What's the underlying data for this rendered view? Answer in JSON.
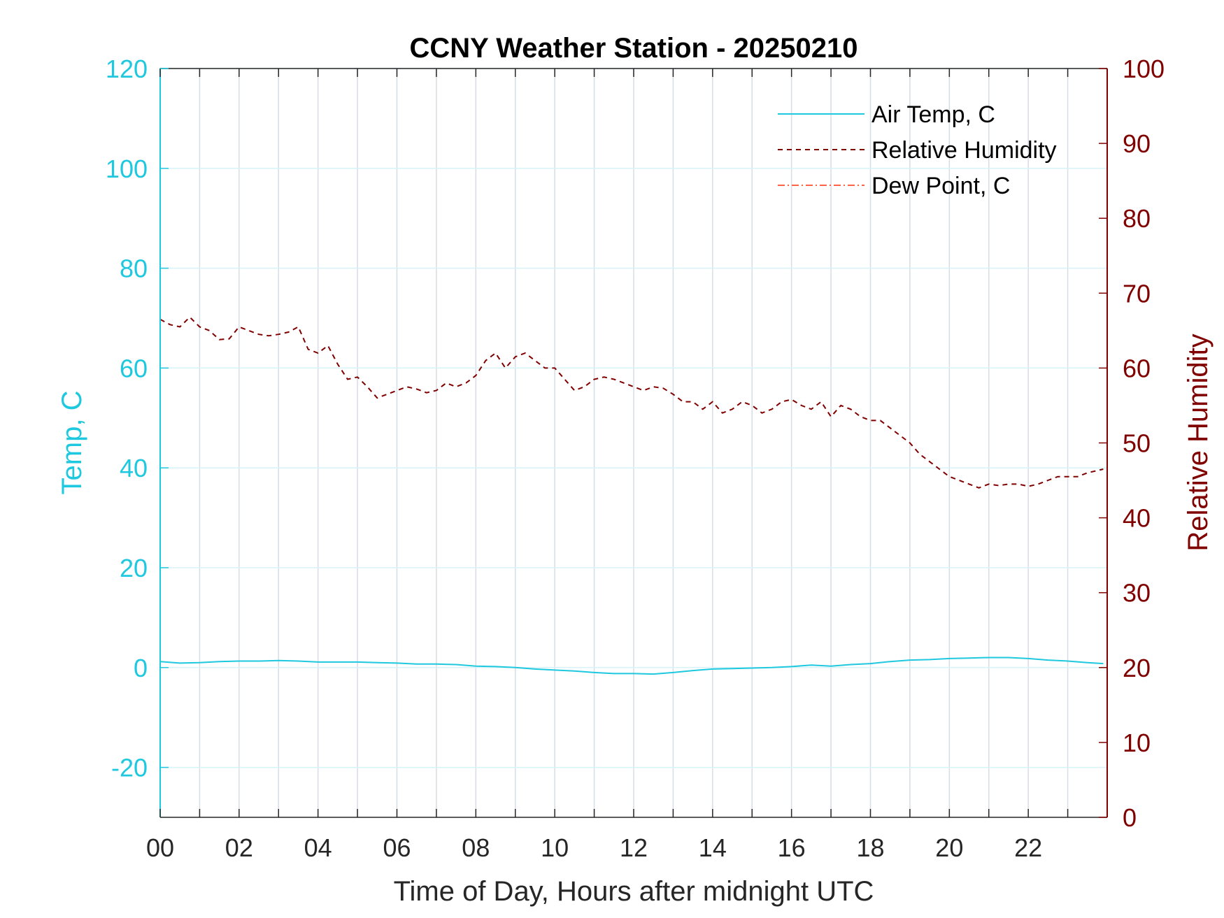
{
  "chart_data": {
    "type": "line",
    "title": "CCNY Weather Station - 20250210",
    "xlabel": "Time of Day, Hours after midnight UTC",
    "ylabel_left": "Temp, C",
    "ylabel_right": "Relative Humidity",
    "xlim": [
      0,
      24
    ],
    "ylim_left": [
      -30,
      120
    ],
    "ylim_right": [
      0,
      100
    ],
    "x_ticks": [
      0,
      2,
      4,
      6,
      8,
      10,
      12,
      14,
      16,
      18,
      20,
      22
    ],
    "x_tick_labels": [
      "00",
      "02",
      "04",
      "06",
      "08",
      "10",
      "12",
      "14",
      "16",
      "18",
      "20",
      "22"
    ],
    "y_ticks_left": [
      -20,
      0,
      20,
      40,
      60,
      80,
      100,
      120
    ],
    "y_tick_labels_left": [
      "-20",
      "0",
      "20",
      "40",
      "60",
      "80",
      "100",
      "120"
    ],
    "y_ticks_right": [
      0,
      10,
      20,
      30,
      40,
      50,
      60,
      70,
      80,
      90,
      100
    ],
    "y_tick_labels_right": [
      "0",
      "10",
      "20",
      "30",
      "40",
      "50",
      "60",
      "70",
      "80",
      "90",
      "100"
    ],
    "grid": true,
    "legend_position": "top-right",
    "colors": {
      "temp": "#1ec8de",
      "humidity": "#800000",
      "dewpoint": "#ff6347"
    },
    "series": [
      {
        "name": "Air Temp, C",
        "axis": "left",
        "style": "solid",
        "x": [
          0,
          0.5,
          1,
          1.5,
          2,
          2.5,
          3,
          3.5,
          4,
          4.5,
          5,
          5.5,
          6,
          6.5,
          7,
          7.5,
          8,
          8.5,
          9,
          9.5,
          10,
          10.5,
          11,
          11.5,
          12,
          12.5,
          13,
          13.5,
          14,
          14.5,
          15,
          15.5,
          16,
          16.5,
          17,
          17.5,
          18,
          18.5,
          19,
          19.5,
          20,
          20.5,
          21,
          21.5,
          22,
          22.5,
          23,
          23.5,
          23.9
        ],
        "y": [
          1.2,
          0.9,
          1.0,
          1.2,
          1.3,
          1.3,
          1.4,
          1.3,
          1.1,
          1.1,
          1.1,
          1.0,
          0.9,
          0.7,
          0.7,
          0.6,
          0.3,
          0.2,
          0.0,
          -0.3,
          -0.5,
          -0.7,
          -1.0,
          -1.2,
          -1.2,
          -1.3,
          -1.0,
          -0.6,
          -0.3,
          -0.2,
          -0.1,
          0.0,
          0.2,
          0.5,
          0.3,
          0.6,
          0.8,
          1.2,
          1.5,
          1.6,
          1.8,
          1.9,
          2.0,
          2.0,
          1.8,
          1.5,
          1.3,
          1.0,
          0.8
        ]
      },
      {
        "name": "Relative Humidity",
        "axis": "right",
        "style": "dashed",
        "x": [
          0,
          0.25,
          0.5,
          0.75,
          1,
          1.25,
          1.5,
          1.75,
          2,
          2.25,
          2.5,
          2.75,
          3,
          3.25,
          3.5,
          3.75,
          4,
          4.25,
          4.5,
          4.75,
          5,
          5.25,
          5.5,
          5.75,
          6,
          6.25,
          6.5,
          6.75,
          7,
          7.25,
          7.5,
          7.75,
          8,
          8.25,
          8.5,
          8.75,
          9,
          9.25,
          9.5,
          9.75,
          10,
          10.25,
          10.5,
          10.75,
          11,
          11.25,
          11.5,
          11.75,
          12,
          12.25,
          12.5,
          12.75,
          13,
          13.25,
          13.5,
          13.75,
          14,
          14.25,
          14.5,
          14.75,
          15,
          15.25,
          15.5,
          15.75,
          16,
          16.25,
          16.5,
          16.75,
          17,
          17.25,
          17.5,
          17.75,
          18,
          18.25,
          18.5,
          18.75,
          19,
          19.25,
          19.5,
          19.75,
          20,
          20.25,
          20.5,
          20.75,
          21,
          21.25,
          21.5,
          21.75,
          22,
          22.25,
          22.5,
          22.75,
          23,
          23.25,
          23.5,
          23.9
        ],
        "y": [
          66.5,
          65.8,
          65.5,
          66.8,
          65.5,
          65.0,
          63.8,
          63.9,
          65.5,
          65.0,
          64.5,
          64.3,
          64.5,
          64.8,
          65.5,
          62.5,
          62.0,
          63.0,
          60.5,
          58.5,
          58.8,
          57.5,
          56.0,
          56.5,
          57.0,
          57.5,
          57.2,
          56.7,
          57.0,
          58.0,
          57.5,
          58.0,
          59.0,
          61.0,
          62.0,
          60.0,
          61.5,
          62.0,
          61.0,
          60.0,
          60.0,
          58.5,
          57.0,
          57.5,
          58.5,
          58.8,
          58.5,
          58.0,
          57.5,
          57.0,
          57.5,
          57.3,
          56.5,
          55.5,
          55.5,
          54.5,
          55.5,
          54.0,
          54.5,
          55.5,
          55.0,
          54.0,
          54.5,
          55.5,
          55.8,
          55.0,
          54.5,
          55.5,
          53.5,
          55.0,
          54.5,
          53.5,
          53.0,
          53.0,
          52.0,
          51.0,
          50.0,
          48.5,
          47.5,
          46.5,
          45.5,
          45.0,
          44.5,
          44.0,
          44.5,
          44.3,
          44.5,
          44.5,
          44.2,
          44.5,
          45.0,
          45.5,
          45.5,
          45.5,
          46.0,
          46.5
        ]
      },
      {
        "name": "Dew Point, C",
        "axis": "left",
        "style": "dashdot",
        "x": [],
        "y": []
      }
    ]
  }
}
